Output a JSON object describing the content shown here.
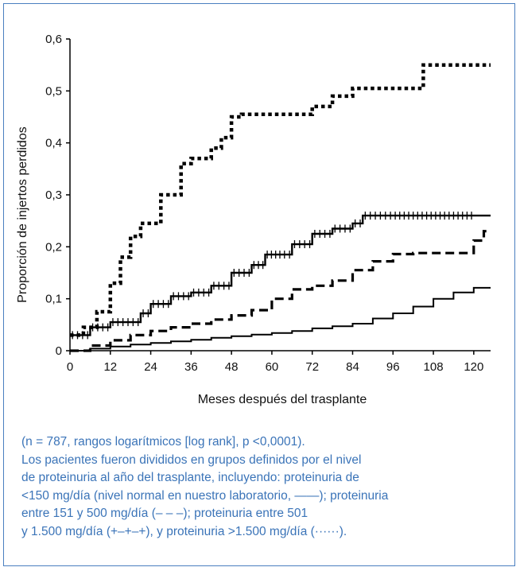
{
  "chart_data": {
    "type": "line",
    "xlabel": "Meses después del trasplante",
    "ylabel": "Proporción de injertos perdidos",
    "xlim": [
      0,
      125
    ],
    "ylim": [
      0,
      0.6
    ],
    "xticks": [
      0,
      12,
      24,
      36,
      48,
      60,
      72,
      84,
      96,
      108,
      120
    ],
    "xtick_labels": [
      "0",
      "12",
      "24",
      "36",
      "48",
      "60",
      "72",
      "84",
      "96",
      "108",
      "120"
    ],
    "yticks": [
      0,
      0.1,
      0.2,
      0.3,
      0.4,
      0.5,
      0.6
    ],
    "ytick_labels": [
      "0",
      "0,1",
      "0,2",
      "0,3",
      "0,4",
      "0,5",
      "0,6"
    ],
    "grid": false,
    "step": true,
    "series": [
      {
        "style": "solid",
        "color": "#000000",
        "points": [
          [
            0,
            0
          ],
          [
            6,
            0.004
          ],
          [
            12,
            0.008
          ],
          [
            18,
            0.012
          ],
          [
            24,
            0.015
          ],
          [
            30,
            0.018
          ],
          [
            36,
            0.021
          ],
          [
            42,
            0.025
          ],
          [
            48,
            0.028
          ],
          [
            54,
            0.031
          ],
          [
            60,
            0.034
          ],
          [
            66,
            0.038
          ],
          [
            72,
            0.043
          ],
          [
            78,
            0.047
          ],
          [
            84,
            0.052
          ],
          [
            90,
            0.062
          ],
          [
            96,
            0.072
          ],
          [
            102,
            0.085
          ],
          [
            108,
            0.1
          ],
          [
            114,
            0.112
          ],
          [
            120,
            0.121
          ],
          [
            125,
            0.121
          ]
        ]
      },
      {
        "style": "dashed",
        "color": "#000000",
        "points": [
          [
            0,
            0
          ],
          [
            6,
            0.01
          ],
          [
            12,
            0.02
          ],
          [
            18,
            0.03
          ],
          [
            24,
            0.038
          ],
          [
            30,
            0.045
          ],
          [
            36,
            0.052
          ],
          [
            42,
            0.06
          ],
          [
            48,
            0.068
          ],
          [
            54,
            0.078
          ],
          [
            60,
            0.1
          ],
          [
            66,
            0.118
          ],
          [
            72,
            0.125
          ],
          [
            78,
            0.135
          ],
          [
            84,
            0.155
          ],
          [
            90,
            0.172
          ],
          [
            96,
            0.186
          ],
          [
            102,
            0.188
          ],
          [
            108,
            0.188
          ],
          [
            114,
            0.188
          ],
          [
            120,
            0.212
          ],
          [
            123,
            0.23
          ],
          [
            125,
            0.23
          ]
        ]
      },
      {
        "style": "plus",
        "color": "#000000",
        "points": [
          [
            0,
            0.03
          ],
          [
            6,
            0.045
          ],
          [
            12,
            0.055
          ],
          [
            18,
            0.055
          ],
          [
            21,
            0.072
          ],
          [
            24,
            0.09
          ],
          [
            30,
            0.105
          ],
          [
            36,
            0.112
          ],
          [
            42,
            0.125
          ],
          [
            48,
            0.15
          ],
          [
            54,
            0.165
          ],
          [
            58,
            0.185
          ],
          [
            63,
            0.185
          ],
          [
            66,
            0.205
          ],
          [
            72,
            0.225
          ],
          [
            78,
            0.235
          ],
          [
            84,
            0.245
          ],
          [
            87,
            0.26
          ],
          [
            96,
            0.26
          ],
          [
            108,
            0.26
          ],
          [
            120,
            0.26
          ],
          [
            125,
            0.26
          ]
        ]
      },
      {
        "style": "dotted",
        "color": "#000000",
        "points": [
          [
            0,
            0.03
          ],
          [
            4,
            0.045
          ],
          [
            8,
            0.075
          ],
          [
            12,
            0.13
          ],
          [
            15,
            0.18
          ],
          [
            18,
            0.22
          ],
          [
            21,
            0.245
          ],
          [
            27,
            0.3
          ],
          [
            33,
            0.36
          ],
          [
            36,
            0.37
          ],
          [
            42,
            0.39
          ],
          [
            45,
            0.41
          ],
          [
            48,
            0.45
          ],
          [
            51,
            0.455
          ],
          [
            60,
            0.455
          ],
          [
            72,
            0.47
          ],
          [
            78,
            0.49
          ],
          [
            84,
            0.505
          ],
          [
            90,
            0.505
          ],
          [
            96,
            0.505
          ],
          [
            102,
            0.505
          ],
          [
            105,
            0.55
          ],
          [
            120,
            0.55
          ],
          [
            125,
            0.55
          ]
        ]
      }
    ]
  },
  "caption": {
    "lines": [
      "(n = 787, rangos logarítmicos [log rank], p <0,0001).",
      "Los pacientes fueron divididos en grupos definidos por el nivel",
      "de proteinuria al año del trasplante, incluyendo: proteinuria de",
      "<150 mg/día (nivel normal en nuestro laboratorio, ——); proteinuria",
      "entre 151 y 500 mg/día (– – –); proteinuria entre 501",
      "y 1.500 mg/día (+–+–+), y proteinuria >1.500 mg/día (······)."
    ]
  }
}
